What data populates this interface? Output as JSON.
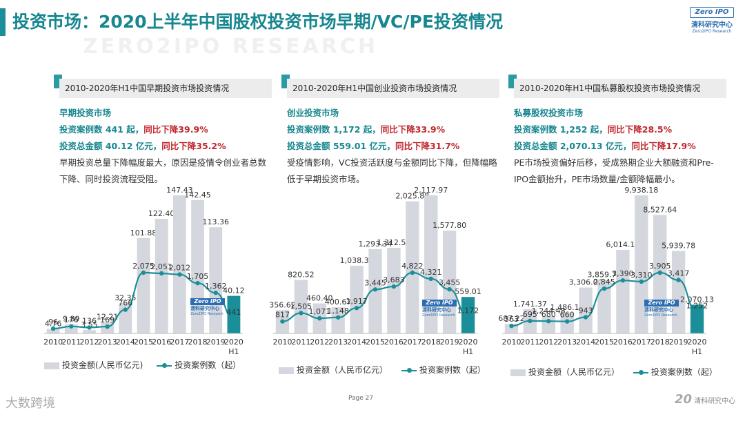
{
  "header": {
    "title": "投资市场：2020上半年中国股权投资市场早期/VC/PE投资情况",
    "watermark": "ZERO2IPO RESEARCH",
    "logo": {
      "brand": "Zero IPO",
      "cn": "清科研究中心",
      "en": "Zero2IPO Research"
    }
  },
  "colors": {
    "accent": "#16868f",
    "bar": "#d5d7de",
    "bar_last": "#1a8f99",
    "line": "#1a8f99",
    "decline": "#c0282d"
  },
  "legend": {
    "bar_label_1": "投资金额(人民币亿元)",
    "bar_label_2": "投资金额（人民币亿元）",
    "bar_label_3": "投资金额（人民币亿元）",
    "line_label": "投资案例数（起）"
  },
  "panels": [
    {
      "heading": "2010-2020年H1中国早期投资市场投资情况",
      "market": "早期投资市场",
      "cases_text": "投资案例数 441 起，",
      "cases_change": "同比下降39.9%",
      "amount_text": "投资总金额 40.12 亿元，",
      "amount_change": "同比下降35.2%",
      "desc": "早期投资总量下降幅度最大，原因是疫情令创业者总数下降、同时投资流程受阻。"
    },
    {
      "heading": "2010-2020年H1中国创业投资市场投资情况",
      "market": "创业投资市场",
      "cases_text": "投资案例数 1,172 起，",
      "cases_change": "同比下降33.9%",
      "amount_text": "投资总金额 559.01 亿元，",
      "amount_change": "同比下降31.7%",
      "desc": "受疫情影响，VC投资活跃度与金额同比下降，但降幅略低于早期投资市场。"
    },
    {
      "heading": "2010-2020年H1中国私募股权投资市场投资情况",
      "market": "私募股权投资市场",
      "cases_text": "投资案例数 1,252 起，",
      "cases_change": "同比下降28.5%",
      "amount_text": "投资总金额 2,070.13 亿元，",
      "amount_change": "同比下降17.9%",
      "desc": "PE市场投资偏好后移，受成熟期企业大额融资和Pre-IPO金额抬升，PE市场数量/金额降幅最小。"
    }
  ],
  "chart_data": [
    {
      "type": "bar",
      "categories": [
        "2010",
        "2011",
        "2012",
        "2013",
        "2014",
        "2015",
        "2016",
        "2017",
        "2018",
        "2019",
        "2020 H1"
      ],
      "series": [
        {
          "name": "投资金额(人民币亿元)",
          "type": "bar",
          "values": [
            4.76,
            9.89,
            3.55,
            12.21,
            32.35,
            101.88,
            122.4,
            147.43,
            142.45,
            113.36,
            40.12
          ],
          "labels": [
            "4.76",
            "9.89",
            "3.55",
            "12.21",
            "32.35",
            "101.88",
            "122.40",
            "147.43",
            "142.45",
            "113.36",
            "40.12"
          ]
        },
        {
          "name": "投资案例数（起）",
          "type": "line",
          "values": [
            96,
            176,
            136,
            169,
            766,
            2075,
            2051,
            2012,
            1705,
            1362,
            441
          ],
          "labels": [
            "96",
            "176",
            "136",
            "169",
            "766",
            "2,075",
            "2,051",
            "2,012",
            "1,705",
            "1,362",
            "441"
          ]
        }
      ]
    },
    {
      "type": "bar",
      "categories": [
        "2010",
        "2011",
        "2012",
        "2013",
        "2014",
        "2015",
        "2016",
        "2017",
        "2018",
        "2019",
        "2020 H1"
      ],
      "series": [
        {
          "name": "投资金额（人民币亿元）",
          "type": "bar",
          "values": [
            356.62,
            820.52,
            460.4,
            400.67,
            1038.3,
            1293.34,
            1312.57,
            2025.88,
            2117.97,
            1577.8,
            559.01
          ],
          "labels": [
            "356.62",
            "820.52",
            "460.40",
            "400.67",
            "1,038.30",
            "1,293.34",
            "1,312.57",
            "2,025.88",
            "2,117.97",
            "1,577.80",
            "559.01"
          ]
        },
        {
          "name": "投资案例数（起）",
          "type": "line",
          "values": [
            817,
            1505,
            1071,
            1148,
            1917,
            3445,
            3683,
            4822,
            4321,
            3455,
            1172
          ],
          "labels": [
            "817",
            "1,505",
            "1,071",
            "1,148",
            "1,917",
            "3,445",
            "3,683",
            "4,822",
            "4,321",
            "3,455",
            "1,172"
          ]
        }
      ]
    },
    {
      "type": "bar",
      "categories": [
        "2010",
        "2011",
        "2012",
        "2013",
        "2014",
        "2015",
        "2016",
        "2017",
        "2018",
        "2019",
        "2020 H1"
      ],
      "series": [
        {
          "name": "投资金额（人民币亿元）",
          "type": "bar",
          "values": [
            687.22,
            1741.37,
            1244.48,
            1486.12,
            3306.06,
            3859.74,
            6014.13,
            9938.18,
            8527.64,
            5939.78,
            2070.13
          ],
          "labels": [
            "687.22",
            "1,741.37",
            "1,244.48",
            "1,486.12",
            "3,306.06",
            "3,859.74",
            "6,014.13",
            "9,938.18",
            "8,527.64",
            "5,939.78",
            "2,070.13"
          ]
        },
        {
          "name": "投资案例数（起）",
          "type": "line",
          "values": [
            363,
            695,
            680,
            660,
            943,
            2845,
            3390,
            3310,
            3905,
            3417,
            1252
          ],
          "labels": [
            "363",
            "695",
            "680",
            "660",
            "943",
            "2,845",
            "3,390",
            "3,310",
            "3,905",
            "3,417",
            "1,252"
          ]
        }
      ]
    }
  ],
  "footer": {
    "page": "Page   27",
    "left_brand": "大数跨境",
    "right_brand": "清科研究中心",
    "right_mark": "20"
  }
}
